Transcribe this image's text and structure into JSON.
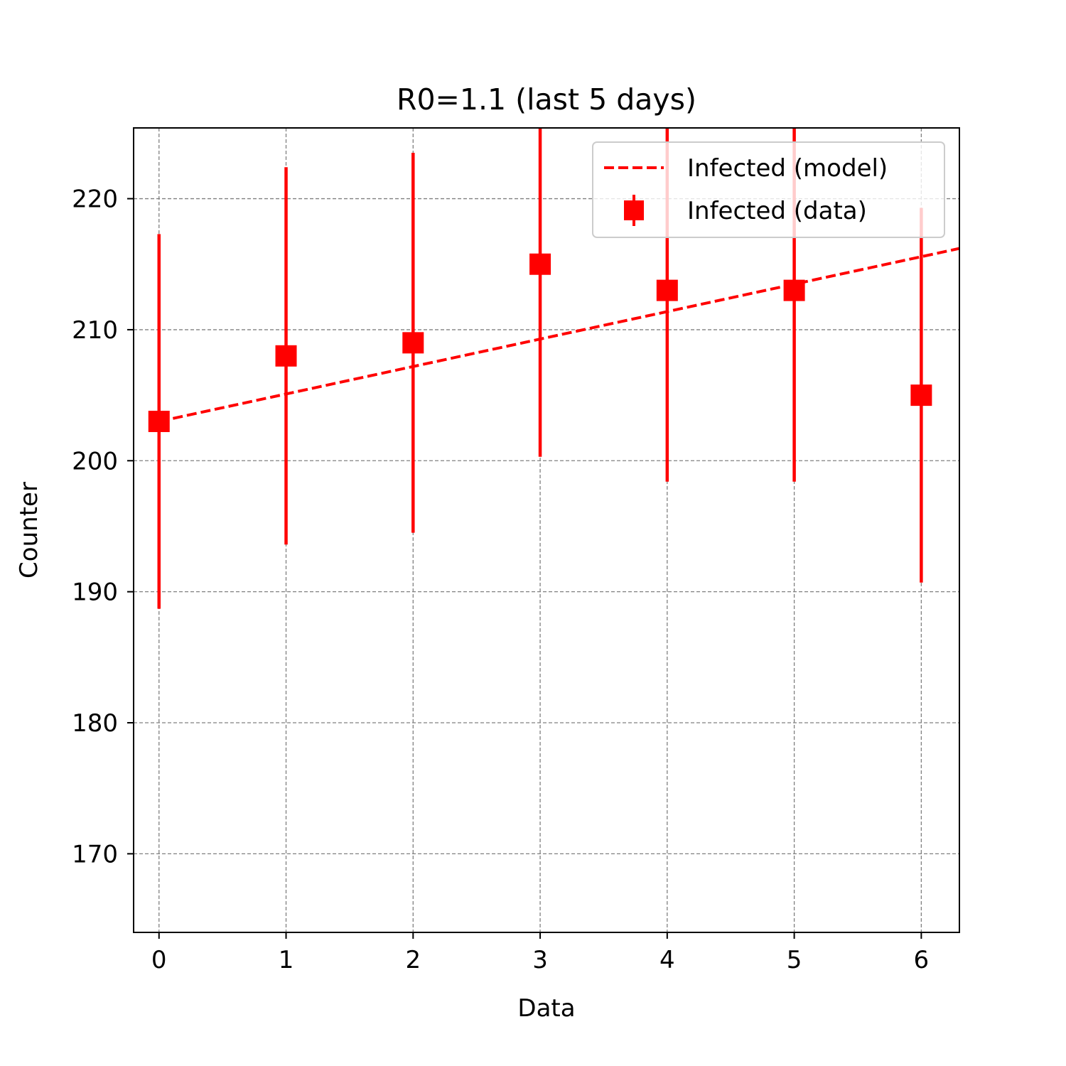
{
  "chart_data": {
    "type": "line",
    "title": "R0=1.1 (last 5 days)",
    "xlabel": "Data",
    "ylabel": "Counter",
    "xlim": [
      -0.2,
      6.3
    ],
    "ylim": [
      164,
      225.4
    ],
    "xticks": [
      0,
      1,
      2,
      3,
      4,
      5,
      6
    ],
    "yticks": [
      170,
      180,
      190,
      200,
      210,
      220
    ],
    "grid": true,
    "legend_position": "top-right",
    "series": [
      {
        "name": "Infected (model)",
        "kind": "line",
        "style": "dashed",
        "color": "#ff0000",
        "x": [
          0,
          6.3
        ],
        "y": [
          203,
          216.2
        ]
      },
      {
        "name": "Infected (data)",
        "kind": "errorbar",
        "marker": "square",
        "color": "#ff0000",
        "x": [
          0,
          1,
          2,
          3,
          4,
          5,
          6
        ],
        "y": [
          203,
          208,
          209,
          215,
          213,
          213,
          205
        ],
        "yerr": [
          14.3,
          14.4,
          14.5,
          14.7,
          14.6,
          14.6,
          14.3
        ]
      }
    ]
  }
}
